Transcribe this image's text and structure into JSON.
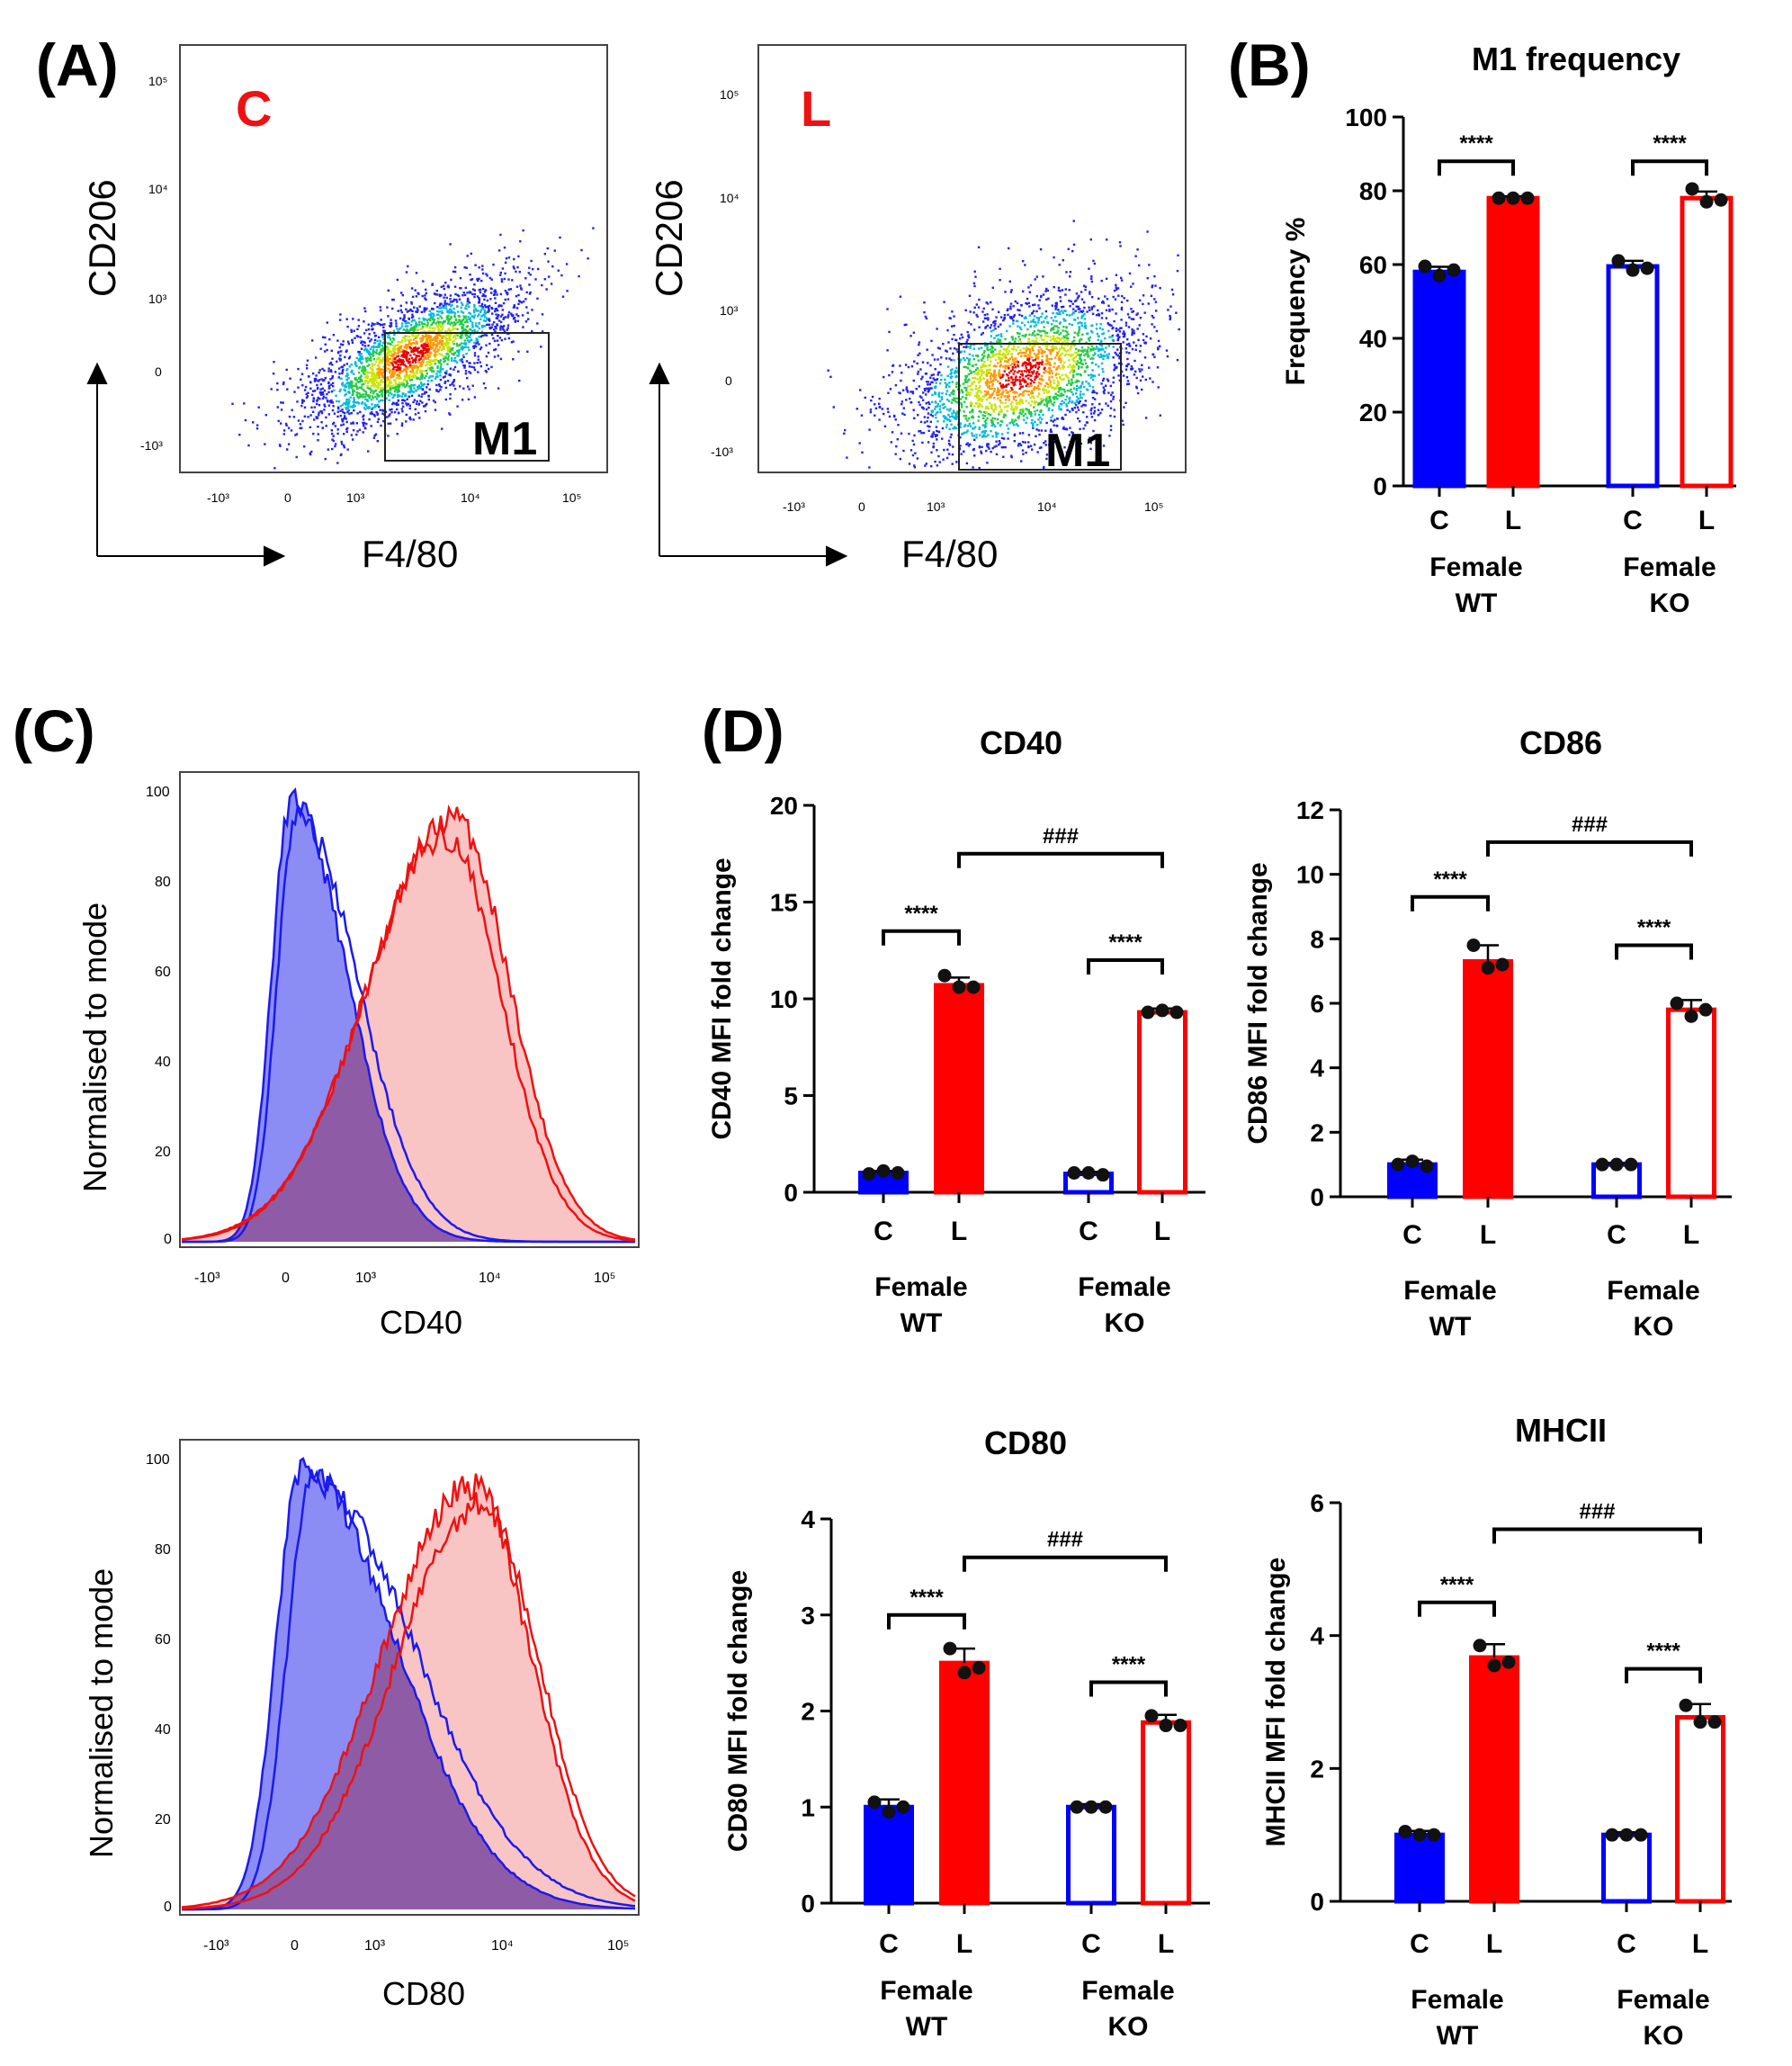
{
  "panels": {
    "A": "(A)",
    "B": "(B)",
    "C": "(C)",
    "D": "(D)"
  },
  "colors": {
    "wt_fill": "#0000ff",
    "ko_edge_c": "#0000ff",
    "l_fill": "#ff0000",
    "ko_edge_l": "#ff0000",
    "hist_blue_fill": "#8c8cf5",
    "hist_red_fill": "#f9c4c4",
    "hist_overlap": "#8e5ba6"
  },
  "flow": {
    "plots": [
      {
        "tag": "C",
        "ylabel": "CD206",
        "xlabel": "F4/80",
        "gate": "M1",
        "yticks": [
          "10⁵",
          "10⁴",
          "10³",
          "0",
          "-10³"
        ],
        "xticks": [
          "-10³",
          "0",
          "10³",
          "10⁴",
          "10⁵"
        ]
      },
      {
        "tag": "L",
        "ylabel": "CD206",
        "xlabel": "F4/80",
        "gate": "M1",
        "yticks": [
          "10⁵",
          "10⁴",
          "10³",
          "0",
          "-10³"
        ],
        "xticks": [
          "-10³",
          "0",
          "10³",
          "10⁴",
          "10⁵"
        ]
      }
    ]
  },
  "histograms": [
    {
      "xlabel": "CD40",
      "ylabel": "Normalised to mode",
      "yticks": [
        "100",
        "80",
        "60",
        "40",
        "20",
        "0"
      ],
      "xticks": [
        "-10³",
        "0",
        "10³",
        "10⁴",
        "10⁵"
      ]
    },
    {
      "xlabel": "CD80",
      "ylabel": "Normalised to mode",
      "yticks": [
        "100",
        "80",
        "60",
        "40",
        "20",
        "0"
      ],
      "xticks": [
        "-10³",
        "0",
        "10³",
        "10⁴",
        "10⁵"
      ]
    }
  ],
  "chart_data": [
    {
      "id": "B",
      "type": "bar",
      "title": "M1 frequency",
      "ylabel": "Frequency %",
      "ylim": [
        0,
        100
      ],
      "yticks": [
        "0",
        "20",
        "40",
        "60",
        "80",
        "100"
      ],
      "categories": [
        "C",
        "L",
        "C",
        "L"
      ],
      "groups": [
        [
          "Female",
          "WT"
        ],
        [
          "Female",
          "KO"
        ]
      ],
      "values": [
        58,
        78,
        59.5,
        78
      ],
      "points": [
        [
          59.5,
          57,
          58.5
        ],
        [
          78,
          78,
          78
        ],
        [
          61,
          58.5,
          59
        ],
        [
          80.5,
          77,
          77.5
        ]
      ],
      "errors": [
        1.4,
        0.5,
        1.5,
        1.8
      ],
      "sig": [
        {
          "from": 0,
          "to": 1,
          "label": "****",
          "level": 88
        },
        {
          "from": 2,
          "to": 3,
          "label": "****",
          "level": 88
        }
      ]
    },
    {
      "id": "CD40",
      "type": "bar",
      "title": "CD40",
      "ylabel": "CD40 MFI fold change",
      "ylim": [
        0,
        20
      ],
      "yticks": [
        "0",
        "5",
        "10",
        "15",
        "20"
      ],
      "categories": [
        "C",
        "L",
        "C",
        "L"
      ],
      "groups": [
        [
          "Female",
          "WT"
        ],
        [
          "Female",
          "KO"
        ]
      ],
      "values": [
        1.0,
        10.7,
        0.95,
        9.3
      ],
      "points": [
        [
          0.95,
          1.1,
          1.0
        ],
        [
          11.2,
          10.6,
          10.6
        ],
        [
          1.0,
          1.0,
          0.9
        ],
        [
          9.3,
          9.4,
          9.3
        ]
      ],
      "errors": [
        0.1,
        0.4,
        0.1,
        0.2
      ],
      "sig": [
        {
          "from": 0,
          "to": 1,
          "label": "****",
          "level": 13.5
        },
        {
          "from": 2,
          "to": 3,
          "label": "****",
          "level": 12
        },
        {
          "from": 1,
          "to": 3,
          "label": "###",
          "level": 17.5
        }
      ]
    },
    {
      "id": "CD86",
      "type": "bar",
      "title": "CD86",
      "ylabel": "CD86 MFI fold change",
      "ylim": [
        0,
        12
      ],
      "yticks": [
        "0",
        "2",
        "4",
        "6",
        "8",
        "10",
        "12"
      ],
      "categories": [
        "C",
        "L",
        "C",
        "L"
      ],
      "groups": [
        [
          "Female",
          "WT"
        ],
        [
          "Female",
          "KO"
        ]
      ],
      "values": [
        1.0,
        7.3,
        1.0,
        5.8
      ],
      "points": [
        [
          1.0,
          1.1,
          0.95
        ],
        [
          7.8,
          7.1,
          7.2
        ],
        [
          1.0,
          1.0,
          1.0
        ],
        [
          6.0,
          5.6,
          5.8
        ]
      ],
      "errors": [
        0.15,
        0.5,
        0.05,
        0.3
      ],
      "sig": [
        {
          "from": 0,
          "to": 1,
          "label": "****",
          "level": 9.3
        },
        {
          "from": 2,
          "to": 3,
          "label": "****",
          "level": 7.8
        },
        {
          "from": 1,
          "to": 3,
          "label": "###",
          "level": 11.0
        }
      ]
    },
    {
      "id": "CD80",
      "type": "bar",
      "title": "CD80",
      "ylabel": "CD80 MFI fold change",
      "ylim": [
        0,
        4
      ],
      "yticks": [
        "0",
        "1",
        "2",
        "3",
        "4"
      ],
      "categories": [
        "C",
        "L",
        "C",
        "L"
      ],
      "groups": [
        [
          "Female",
          "WT"
        ],
        [
          "Female",
          "KO"
        ]
      ],
      "values": [
        1.0,
        2.5,
        1.0,
        1.88
      ],
      "points": [
        [
          1.05,
          0.95,
          1.0
        ],
        [
          2.65,
          2.4,
          2.45
        ],
        [
          1.0,
          1.0,
          1.0
        ],
        [
          1.95,
          1.85,
          1.85
        ]
      ],
      "errors": [
        0.08,
        0.15,
        0.03,
        0.08
      ],
      "sig": [
        {
          "from": 0,
          "to": 1,
          "label": "****",
          "level": 3.0
        },
        {
          "from": 2,
          "to": 3,
          "label": "****",
          "level": 2.3
        },
        {
          "from": 1,
          "to": 3,
          "label": "###",
          "level": 3.6
        }
      ]
    },
    {
      "id": "MHCII",
      "type": "bar",
      "title": "MHCII",
      "ylabel": "MHCII MFI fold change",
      "ylim": [
        0,
        6
      ],
      "yticks": [
        "0",
        "2",
        "4",
        "6"
      ],
      "categories": [
        "C",
        "L",
        "C",
        "L"
      ],
      "groups": [
        [
          "Female",
          "WT"
        ],
        [
          "Female",
          "KO"
        ]
      ],
      "values": [
        1.0,
        3.67,
        1.0,
        2.77
      ],
      "points": [
        [
          1.05,
          1.0,
          1.0
        ],
        [
          3.85,
          3.55,
          3.6
        ],
        [
          1.0,
          1.0,
          1.0
        ],
        [
          2.95,
          2.7,
          2.7
        ]
      ],
      "errors": [
        0.06,
        0.2,
        0.04,
        0.2
      ],
      "sig": [
        {
          "from": 0,
          "to": 1,
          "label": "****",
          "level": 4.5
        },
        {
          "from": 2,
          "to": 3,
          "label": "****",
          "level": 3.5
        },
        {
          "from": 1,
          "to": 3,
          "label": "###",
          "level": 5.6
        }
      ]
    }
  ]
}
